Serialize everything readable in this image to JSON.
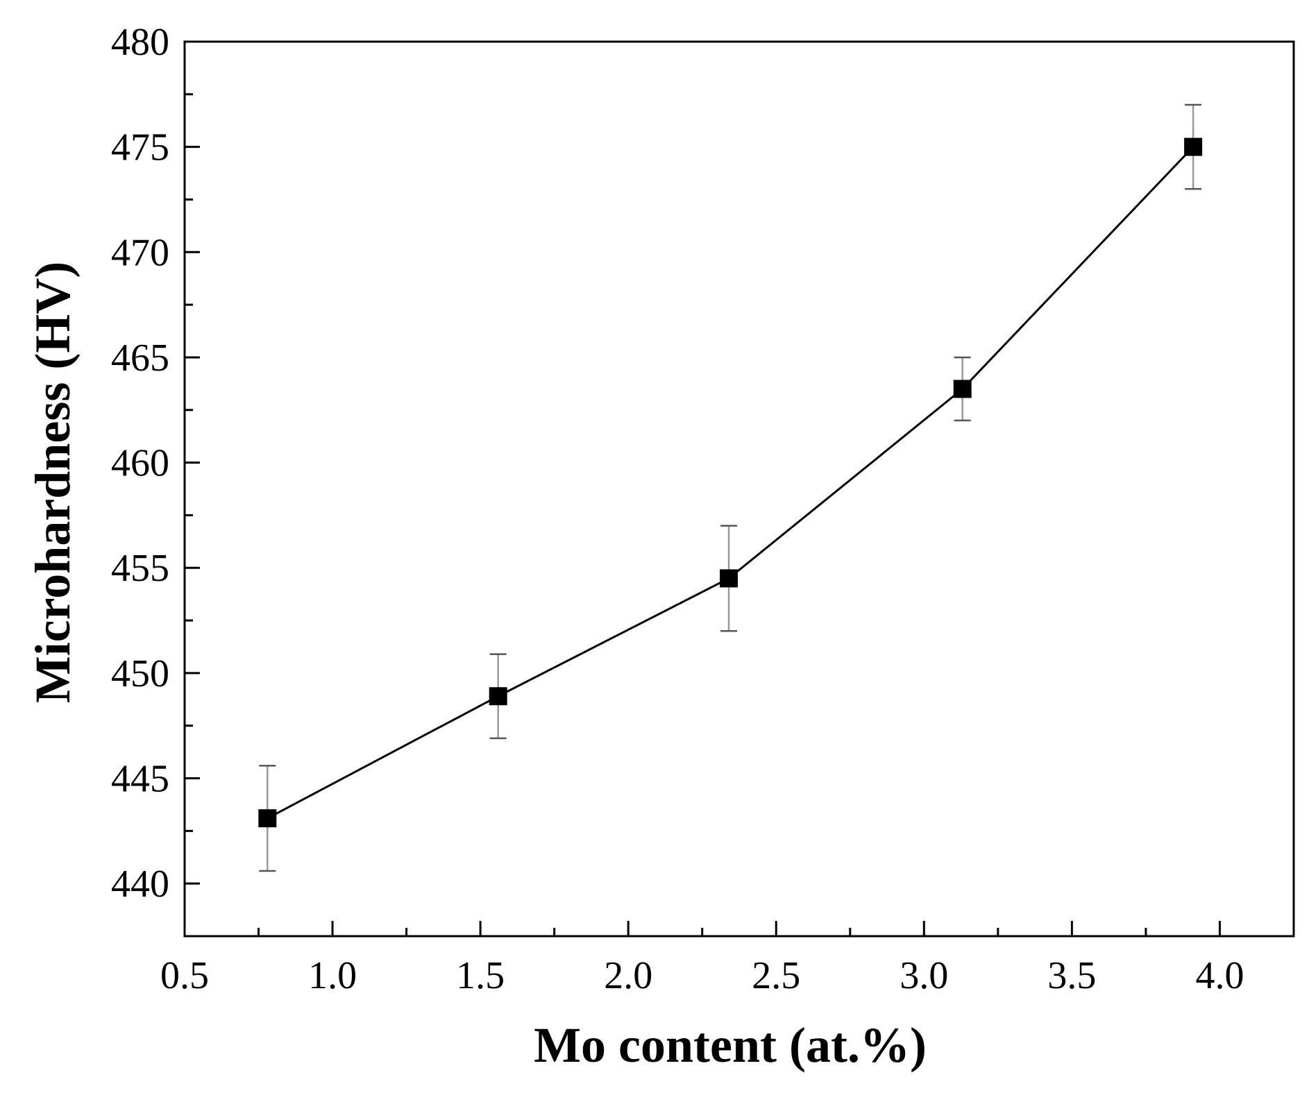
{
  "chart_data": {
    "type": "scatter",
    "title": "",
    "xlabel": "Mo content (at.%)",
    "ylabel": "Microhardness (HV)",
    "xlim": [
      0.5,
      4.25
    ],
    "ylim": [
      437.5,
      480
    ],
    "xticks": [
      0.5,
      1.0,
      1.5,
      2.0,
      2.5,
      3.0,
      3.5,
      4.0
    ],
    "xtick_labels": [
      "0.5",
      "1.0",
      "1.5",
      "2.0",
      "2.5",
      "3.0",
      "3.5",
      "4.0"
    ],
    "yticks": [
      440,
      445,
      450,
      455,
      460,
      465,
      470,
      475,
      480
    ],
    "ytick_labels": [
      "440",
      "445",
      "450",
      "455",
      "460",
      "465",
      "470",
      "475",
      "480"
    ],
    "grid": false,
    "legend": "none",
    "marker": "square",
    "line": true,
    "series": [
      {
        "x": [
          0.78,
          1.56,
          2.34,
          3.13,
          3.91
        ],
        "y": [
          443.1,
          448.9,
          454.5,
          463.5,
          475.0
        ],
        "yerr": [
          2.5,
          2.0,
          2.5,
          1.5,
          2.0
        ]
      }
    ],
    "colors": {
      "line": "#000000",
      "marker": "#000000",
      "errorbar": "#999999"
    }
  }
}
